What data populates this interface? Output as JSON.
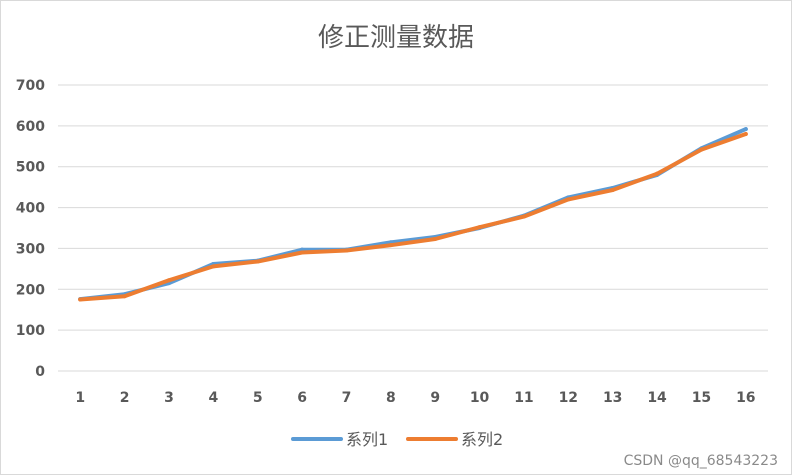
{
  "chart_data": {
    "type": "line",
    "title": "修正测量数据",
    "xlabel": "",
    "ylabel": "",
    "categories": [
      "1",
      "2",
      "3",
      "4",
      "5",
      "6",
      "7",
      "8",
      "9",
      "10",
      "11",
      "12",
      "13",
      "14",
      "15",
      "16"
    ],
    "ylim": [
      0,
      700
    ],
    "yticks": [
      "0",
      "100",
      "200",
      "300",
      "400",
      "500",
      "600",
      "700"
    ],
    "grid": true,
    "legend_position": "bottom",
    "series": [
      {
        "name": "系列1",
        "color": "#5B9BD5",
        "values": [
          176,
          188,
          215,
          262,
          270,
          297,
          297,
          315,
          328,
          350,
          380,
          425,
          448,
          480,
          545,
          592
        ]
      },
      {
        "name": "系列2",
        "color": "#ED7D31",
        "values": [
          175,
          183,
          222,
          256,
          268,
          290,
          295,
          308,
          323,
          352,
          378,
          420,
          443,
          483,
          542,
          580
        ]
      }
    ]
  },
  "watermark": "CSDN @qq_68543223"
}
